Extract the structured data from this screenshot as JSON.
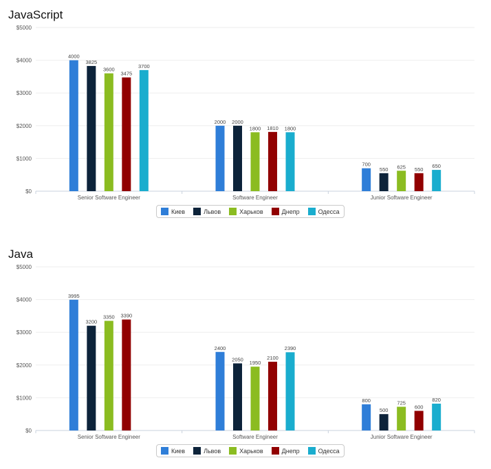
{
  "legend": [
    {
      "name": "Киев",
      "color": "#2f7ed8"
    },
    {
      "name": "Львов",
      "color": "#0d233a"
    },
    {
      "name": "Харьков",
      "color": "#8bbc21"
    },
    {
      "name": "Днепр",
      "color": "#910000"
    },
    {
      "name": "Одесса",
      "color": "#1aadce"
    }
  ],
  "chart_data": [
    {
      "type": "bar",
      "title": "JavaScript",
      "categories": [
        "Senior Software Engineer",
        "Software Engineer",
        "Junior Software Engineer"
      ],
      "y_ticks": [
        "$0",
        "$1000",
        "$2000",
        "$3000",
        "$4000",
        "$5000"
      ],
      "ylim": [
        0,
        5000
      ],
      "grid": true,
      "legend_position": "bottom-center",
      "series": [
        {
          "name": "Киев",
          "color": "#2f7ed8",
          "values": [
            4000,
            2000,
            700
          ]
        },
        {
          "name": "Львов",
          "color": "#0d233a",
          "values": [
            3825,
            2000,
            550
          ]
        },
        {
          "name": "Харьков",
          "color": "#8bbc21",
          "values": [
            3600,
            1800,
            625
          ]
        },
        {
          "name": "Днепр",
          "color": "#910000",
          "values": [
            3475,
            1810,
            550
          ]
        },
        {
          "name": "Одесса",
          "color": "#1aadce",
          "values": [
            3700,
            1800,
            650
          ]
        }
      ]
    },
    {
      "type": "bar",
      "title": "Java",
      "categories": [
        "Senior Software Engineer",
        "Software Engineer",
        "Junior Software Engineer"
      ],
      "y_ticks": [
        "$0",
        "$1000",
        "$2000",
        "$3000",
        "$4000",
        "$5000"
      ],
      "ylim": [
        0,
        5000
      ],
      "grid": true,
      "legend_position": "bottom-center",
      "series": [
        {
          "name": "Киев",
          "color": "#2f7ed8",
          "values": [
            3995,
            2400,
            800
          ]
        },
        {
          "name": "Львов",
          "color": "#0d233a",
          "values": [
            3200,
            2050,
            500
          ]
        },
        {
          "name": "Харьков",
          "color": "#8bbc21",
          "values": [
            3350,
            1950,
            725
          ]
        },
        {
          "name": "Днепр",
          "color": "#910000",
          "values": [
            3390,
            2100,
            600
          ]
        },
        {
          "name": "Одесса",
          "color": "#1aadce",
          "values": [
            null,
            2390,
            820
          ]
        }
      ]
    }
  ]
}
